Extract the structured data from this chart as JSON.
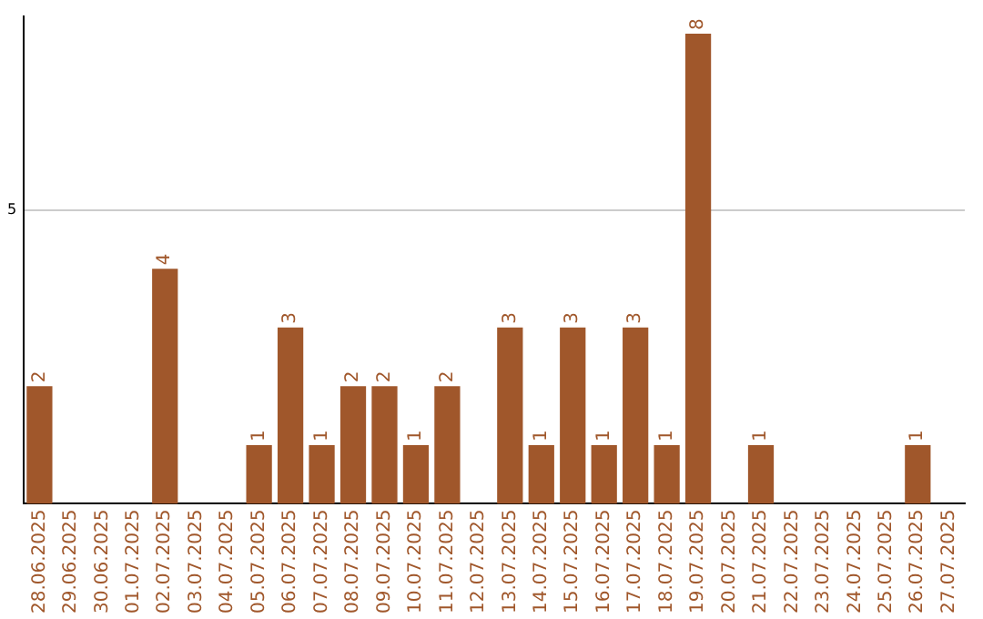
{
  "chart_data": {
    "type": "bar",
    "categories": [
      "28.06.2025",
      "29.06.2025",
      "30.06.2025",
      "01.07.2025",
      "02.07.2025",
      "03.07.2025",
      "04.07.2025",
      "05.07.2025",
      "06.07.2025",
      "07.07.2025",
      "08.07.2025",
      "09.07.2025",
      "10.07.2025",
      "11.07.2025",
      "12.07.2025",
      "13.07.2025",
      "14.07.2025",
      "15.07.2025",
      "16.07.2025",
      "17.07.2025",
      "18.07.2025",
      "19.07.2025",
      "20.07.2025",
      "21.07.2025",
      "22.07.2025",
      "23.07.2025",
      "24.07.2025",
      "25.07.2025",
      "26.07.2025",
      "27.07.2025"
    ],
    "values": [
      2,
      0,
      0,
      0,
      4,
      0,
      0,
      1,
      3,
      1,
      2,
      2,
      1,
      2,
      0,
      3,
      1,
      3,
      1,
      3,
      1,
      8,
      0,
      1,
      0,
      0,
      0,
      0,
      1,
      0
    ],
    "value_labels": [
      "2",
      null,
      null,
      null,
      "4",
      null,
      null,
      "1",
      "3",
      "1",
      "2",
      "2",
      "1",
      "2",
      null,
      "3",
      "1",
      "3",
      "1",
      "3",
      "1",
      "8",
      null,
      "1",
      null,
      null,
      null,
      null,
      "1",
      null
    ],
    "color": "#a0572b",
    "ylim": [
      0,
      8.3
    ],
    "yticks": [
      5
    ],
    "grid": "y",
    "legend": false
  }
}
